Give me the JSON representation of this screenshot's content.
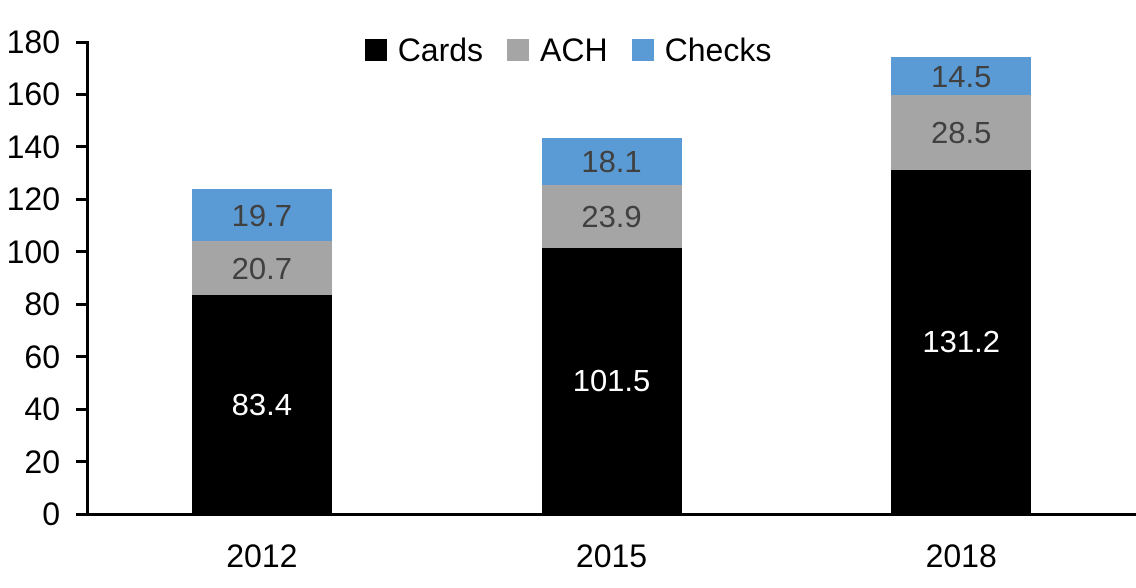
{
  "chart_data": {
    "type": "bar",
    "stacked": true,
    "title": "",
    "xlabel": "",
    "ylabel": "",
    "categories": [
      "2012",
      "2015",
      "2018"
    ],
    "series": [
      {
        "name": "Cards",
        "color": "#000000",
        "label_color": "#ffffff",
        "values": [
          83.4,
          101.5,
          131.2
        ]
      },
      {
        "name": "ACH",
        "color": "#a5a5a5",
        "label_color": "#404040",
        "values": [
          20.7,
          23.9,
          28.5
        ]
      },
      {
        "name": "Checks",
        "color": "#5b9bd5",
        "label_color": "#404040",
        "values": [
          19.7,
          18.1,
          14.5
        ]
      }
    ],
    "totals": [
      123.8,
      143.5,
      174.2
    ],
    "ylim": [
      0,
      180
    ],
    "ytick_step": 20,
    "ytick_labels": [
      "0",
      "20",
      "40",
      "60",
      "80",
      "100",
      "120",
      "140",
      "160",
      "180"
    ],
    "legend_position": "top-center",
    "legend_entries": [
      "Cards",
      "ACH",
      "Checks"
    ],
    "grid": false,
    "data_label_decimals": 1,
    "colors": {
      "background": "#ffffff",
      "axis": "#000000",
      "tick_text": "#000000"
    }
  }
}
